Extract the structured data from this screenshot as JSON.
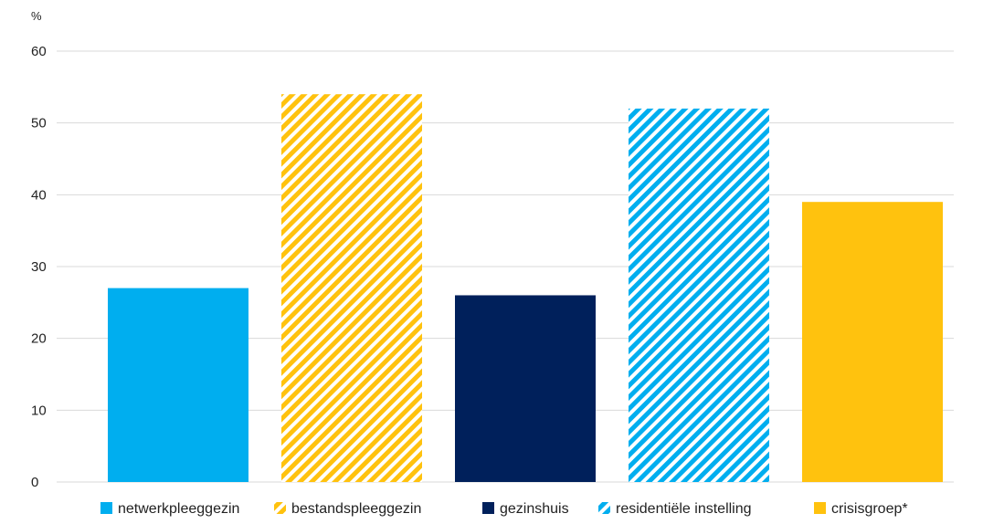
{
  "chart_data": {
    "type": "bar",
    "unit_label": "%",
    "categories": [
      "netwerkpleeggezin",
      "bestandspleeggezin",
      "gezinshuis",
      "residentiële instelling",
      "crisisgroep*"
    ],
    "values": [
      27,
      54,
      26,
      52,
      39
    ],
    "ylim": [
      0,
      60
    ],
    "yticks": [
      0,
      10,
      20,
      30,
      40,
      50,
      60
    ],
    "grid": true,
    "legend_position": "bottom",
    "bars": [
      {
        "label": "netwerkpleeggezin",
        "color": "#00aeef",
        "pattern": "solid"
      },
      {
        "label": "bestandspleeggezin",
        "color": "#ffc20e",
        "pattern": "diagonal-stripes"
      },
      {
        "label": "gezinshuis",
        "color": "#00205b",
        "pattern": "solid"
      },
      {
        "label": "residentiële instelling",
        "color": "#00aeef",
        "pattern": "diagonal-stripes"
      },
      {
        "label": "crisisgroep*",
        "color": "#ffc20e",
        "pattern": "solid"
      }
    ]
  }
}
